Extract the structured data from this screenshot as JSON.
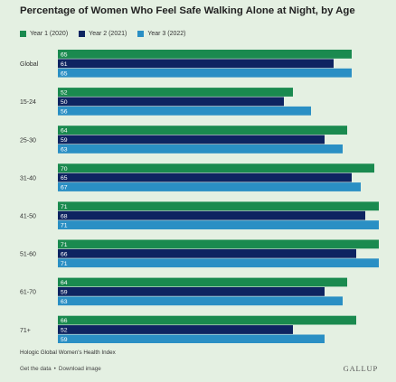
{
  "title": "Percentage of Women Who Feel Safe Walking Alone at Night, by Age",
  "colors": {
    "background": "#e4f0e2",
    "year1": "#1a8a4f",
    "year2": "#0e2461",
    "year3": "#2a8fc4"
  },
  "chart_data": {
    "type": "bar",
    "orientation": "horizontal",
    "title": "Percentage of Women Who Feel Safe Walking Alone at Night, by Age",
    "categories": [
      "Global",
      "15-24",
      "25-30",
      "31-40",
      "41-50",
      "51-60",
      "61-70",
      "71+"
    ],
    "series": [
      {
        "name": "Year 1 (2020)",
        "color": "#1a8a4f",
        "values": [
          65,
          52,
          64,
          70,
          71,
          71,
          64,
          66
        ]
      },
      {
        "name": "Year 2 (2021)",
        "color": "#0e2461",
        "values": [
          61,
          50,
          59,
          65,
          68,
          66,
          59,
          52
        ]
      },
      {
        "name": "Year 3 (2022)",
        "color": "#2a8fc4",
        "values": [
          65,
          56,
          63,
          67,
          71,
          71,
          63,
          59
        ]
      }
    ],
    "xlim": [
      0,
      71
    ],
    "grid": false,
    "legend": "top-left",
    "data_labels": "inside-left"
  },
  "source": "Hologic Global Women's Health Index",
  "footer": {
    "get_data": "Get the data",
    "separator": "•",
    "download": "Download image"
  },
  "brand": "GALLUP"
}
